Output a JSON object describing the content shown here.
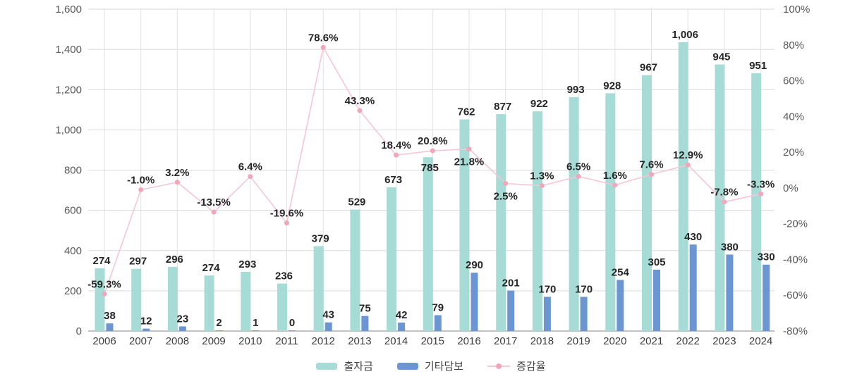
{
  "chart_data": {
    "type": "combo (bar + line)",
    "title": "",
    "categories": [
      "2006",
      "2007",
      "2008",
      "2009",
      "2010",
      "2011",
      "2012",
      "2013",
      "2014",
      "2015",
      "2016",
      "2017",
      "2018",
      "2019",
      "2020",
      "2021",
      "2022",
      "2023",
      "2024"
    ],
    "series": [
      {
        "name": "출자금",
        "type": "bar",
        "axis": "left",
        "color": "#a7dcd6",
        "values": [
          274,
          297,
          296,
          274,
          293,
          236,
          379,
          529,
          673,
          785,
          762,
          877,
          922,
          993,
          928,
          967,
          1006,
          945,
          951
        ],
        "labels": [
          "274",
          "297",
          "296",
          "274",
          "293",
          "236",
          "379",
          "529",
          "673",
          "785",
          "762",
          "877",
          "922",
          "993",
          "928",
          "967",
          "1,006",
          "945",
          "951"
        ],
        "label_dy": [
          0,
          0,
          0,
          0,
          0,
          0,
          0,
          0,
          0,
          26,
          0,
          0,
          0,
          0,
          0,
          0,
          0,
          0,
          0
        ]
      },
      {
        "name": "기타담보",
        "type": "bar",
        "axis": "left",
        "color": "#6c96d2",
        "values": [
          38,
          12,
          23,
          2,
          1,
          0,
          43,
          75,
          42,
          79,
          290,
          201,
          170,
          170,
          254,
          305,
          430,
          380,
          330
        ],
        "labels": [
          "38",
          "12",
          "23",
          "2",
          "1",
          "0",
          "43",
          "75",
          "42",
          "79",
          "290",
          "201",
          "170",
          "170",
          "254",
          "305",
          "430",
          "380",
          "330"
        ]
      },
      {
        "name": "증감율",
        "type": "line",
        "axis": "right",
        "line_color": "#f6c6d3",
        "marker_color": "#f2a6ba",
        "values": [
          -59.3,
          -1.0,
          3.2,
          -13.5,
          6.4,
          -19.6,
          78.6,
          43.3,
          18.4,
          20.8,
          21.8,
          2.5,
          1.3,
          6.5,
          1.6,
          7.6,
          12.9,
          -7.8,
          -3.3
        ],
        "labels": [
          "-59.3%",
          "-1.0%",
          "3.2%",
          "-13.5%",
          "6.4%",
          "-19.6%",
          "78.6%",
          "43.3%",
          "18.4%",
          "20.8%",
          "21.8%",
          "2.5%",
          "1.3%",
          "6.5%",
          "1.6%",
          "7.6%",
          "12.9%",
          "-7.8%",
          "-3.3%"
        ],
        "label_side": [
          "above",
          "above",
          "above",
          "above",
          "above",
          "above",
          "above",
          "above",
          "above",
          "above",
          "below",
          "below",
          "above",
          "above",
          "above",
          "above",
          "above",
          "above",
          "above"
        ]
      }
    ],
    "left_axis": {
      "min": 0,
      "max": 1600,
      "tick_step": 200,
      "tick_labels_top_to_bottom": [
        "1,600",
        "1,400",
        "1,200",
        "1,000",
        "800",
        "600",
        "400",
        "200",
        "0"
      ]
    },
    "right_axis": {
      "min": -80,
      "max": 100,
      "tick_step": 20,
      "tick_labels_top_to_bottom": [
        "100%",
        "80%",
        "60%",
        "40%",
        "20%",
        "0%",
        "-20%",
        "-40%",
        "-60%",
        "-80%"
      ]
    },
    "grid": {
      "horizontal": true,
      "vertical": "at-category-centers",
      "gridline_color": "#d9d9d9",
      "vertical_gridline_color": "#e2e2e2",
      "axis_line_color": "#9e9e9e"
    },
    "legend": {
      "position": "bottom-center",
      "items": [
        "출자금",
        "기타담보",
        "증감율"
      ]
    },
    "rendering_note": "출자금(teal) bar pixel height depicts the combined total 출자금+기타담보; the 증감율 line is the YoY change of that total"
  }
}
